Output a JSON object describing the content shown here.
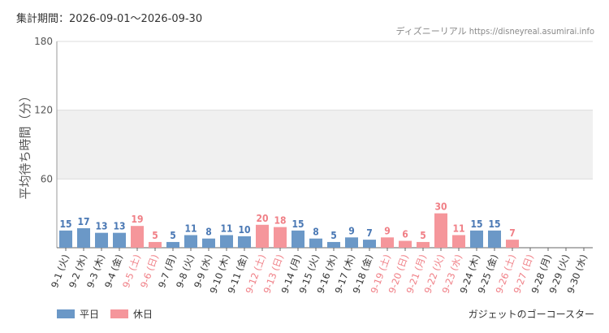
{
  "header": {
    "period_label": "集計期間：2026-09-01～2026-09-30",
    "source": "ディズニーリアル https://disneyreal.asumirai.info"
  },
  "footer": {
    "attraction": "ガジェットのゴーコースター"
  },
  "colors": {
    "weekday": "#6b98c7",
    "holiday": "#f5969b",
    "weekday_text": "#4a78b4",
    "holiday_text": "#f07f86",
    "band": "#f0f0f0"
  },
  "chart_data": {
    "type": "bar",
    "ylabel": "平均待ち時間（分）",
    "ylim": [
      0,
      180
    ],
    "yticks": [
      60,
      120,
      180
    ],
    "grid": true,
    "legend_position": "bottom-left",
    "legend": [
      {
        "key": "weekday",
        "label": "平日"
      },
      {
        "key": "holiday",
        "label": "休日"
      }
    ],
    "categories": [
      "9-1 (火)",
      "9-2 (水)",
      "9-3 (木)",
      "9-4 (金)",
      "9-5 (土)",
      "9-6 (日)",
      "9-7 (月)",
      "9-8 (火)",
      "9-9 (水)",
      "9-10 (木)",
      "9-11 (金)",
      "9-12 (土)",
      "9-13 (日)",
      "9-14 (月)",
      "9-15 (火)",
      "9-16 (水)",
      "9-17 (木)",
      "9-18 (金)",
      "9-19 (土)",
      "9-20 (日)",
      "9-21 (月)",
      "9-22 (火)",
      "9-23 (水)",
      "9-24 (木)",
      "9-25 (金)",
      "9-26 (土)",
      "9-27 (日)",
      "9-28 (月)",
      "9-29 (火)",
      "9-30 (水)"
    ],
    "values": [
      15,
      17,
      13,
      13,
      19,
      5,
      5,
      11,
      8,
      11,
      10,
      20,
      18,
      15,
      8,
      5,
      9,
      7,
      9,
      6,
      5,
      30,
      11,
      15,
      15,
      7,
      null,
      null,
      null,
      null
    ],
    "day_type": [
      "weekday",
      "weekday",
      "weekday",
      "weekday",
      "holiday",
      "holiday",
      "weekday",
      "weekday",
      "weekday",
      "weekday",
      "weekday",
      "holiday",
      "holiday",
      "weekday",
      "weekday",
      "weekday",
      "weekday",
      "weekday",
      "holiday",
      "holiday",
      "holiday",
      "holiday",
      "holiday",
      "weekday",
      "weekday",
      "holiday",
      "holiday",
      "weekday",
      "weekday",
      "weekday"
    ]
  }
}
